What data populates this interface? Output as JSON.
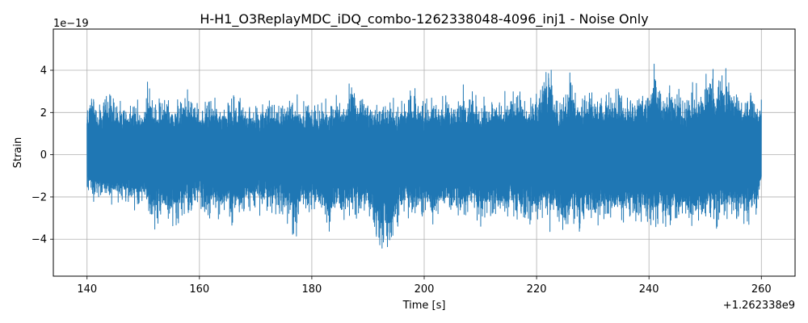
{
  "chart_data": {
    "type": "line",
    "title": "H-H1_O3ReplayMDC_iDQ_combo-1262338048-4096_inj1 - Noise Only",
    "xlabel": "Time [s]",
    "ylabel": "Strain",
    "x_offset_label": "+1.262338e9",
    "y_scale_label": "1e−19",
    "xlim": [
      134,
      266
    ],
    "ylim": [
      -5.75,
      5.95
    ],
    "x_ticks": [
      140,
      160,
      180,
      200,
      220,
      240,
      260
    ],
    "x_tick_labels": [
      "140",
      "160",
      "180",
      "200",
      "220",
      "240",
      "260"
    ],
    "y_ticks": [
      -4,
      -2,
      0,
      2,
      4
    ],
    "y_tick_labels": [
      "−4",
      "−2",
      "0",
      "2",
      "4"
    ],
    "grid": true,
    "series": [
      {
        "color": "#1f77b4",
        "x_range": [
          140,
          260
        ],
        "envelope_upper": [
          [
            140,
            2.8
          ],
          [
            141,
            3.8
          ],
          [
            142,
            2.6
          ],
          [
            144,
            3.7
          ],
          [
            146,
            2.6
          ],
          [
            148,
            3.0
          ],
          [
            150,
            2.5
          ],
          [
            151,
            4.1
          ],
          [
            152,
            2.7
          ],
          [
            154,
            3.2
          ],
          [
            156,
            2.9
          ],
          [
            158,
            3.4
          ],
          [
            160,
            2.6
          ],
          [
            162,
            3.0
          ],
          [
            164,
            2.7
          ],
          [
            166,
            3.1
          ],
          [
            168,
            2.8
          ],
          [
            170,
            2.6
          ],
          [
            172,
            3.0
          ],
          [
            174,
            2.7
          ],
          [
            176,
            3.3
          ],
          [
            178,
            3.0
          ],
          [
            180,
            2.8
          ],
          [
            182,
            2.6
          ],
          [
            184,
            3.2
          ],
          [
            186,
            2.9
          ],
          [
            187,
            4.3
          ],
          [
            188,
            3.4
          ],
          [
            190,
            3.0
          ],
          [
            192,
            2.7
          ],
          [
            194,
            3.1
          ],
          [
            196,
            2.8
          ],
          [
            198,
            3.3
          ],
          [
            200,
            2.9
          ],
          [
            202,
            3.1
          ],
          [
            204,
            3.0
          ],
          [
            206,
            3.4
          ],
          [
            208,
            3.6
          ],
          [
            210,
            2.9
          ],
          [
            212,
            3.2
          ],
          [
            214,
            3.0
          ],
          [
            216,
            3.3
          ],
          [
            218,
            3.1
          ],
          [
            220,
            3.4
          ],
          [
            222,
            4.5
          ],
          [
            224,
            3.0
          ],
          [
            226,
            4.2
          ],
          [
            228,
            3.1
          ],
          [
            230,
            3.3
          ],
          [
            232,
            3.2
          ],
          [
            234,
            3.6
          ],
          [
            236,
            3.1
          ],
          [
            238,
            3.6
          ],
          [
            240,
            3.9
          ],
          [
            241,
            5.4
          ],
          [
            242,
            3.4
          ],
          [
            244,
            3.7
          ],
          [
            246,
            3.2
          ],
          [
            248,
            3.5
          ],
          [
            250,
            4.0
          ],
          [
            251,
            5.0
          ],
          [
            252,
            4.2
          ],
          [
            254,
            4.6
          ],
          [
            256,
            3.2
          ],
          [
            258,
            3.4
          ],
          [
            260,
            2.8
          ]
        ],
        "envelope_lower": [
          [
            140,
            -1.8
          ],
          [
            141,
            -2.5
          ],
          [
            142,
            -2.2
          ],
          [
            144,
            -2.6
          ],
          [
            146,
            -2.3
          ],
          [
            148,
            -3.2
          ],
          [
            150,
            -2.6
          ],
          [
            152,
            -4.1
          ],
          [
            154,
            -3.3
          ],
          [
            155,
            -4.0
          ],
          [
            156,
            -3.6
          ],
          [
            158,
            -3.3
          ],
          [
            160,
            -3.0
          ],
          [
            162,
            -3.4
          ],
          [
            164,
            -3.0
          ],
          [
            166,
            -3.6
          ],
          [
            168,
            -3.2
          ],
          [
            170,
            -3.0
          ],
          [
            172,
            -3.2
          ],
          [
            174,
            -3.0
          ],
          [
            176,
            -3.5
          ],
          [
            177,
            -4.8
          ],
          [
            178,
            -3.2
          ],
          [
            180,
            -3.0
          ],
          [
            182,
            -3.3
          ],
          [
            183,
            -5.0
          ],
          [
            184,
            -3.4
          ],
          [
            186,
            -3.3
          ],
          [
            188,
            -3.2
          ],
          [
            190,
            -3.5
          ],
          [
            192,
            -5.0
          ],
          [
            194,
            -5.2
          ],
          [
            196,
            -3.3
          ],
          [
            198,
            -3.5
          ],
          [
            200,
            -3.3
          ],
          [
            202,
            -3.6
          ],
          [
            204,
            -3.2
          ],
          [
            206,
            -3.5
          ],
          [
            208,
            -3.3
          ],
          [
            210,
            -3.6
          ],
          [
            212,
            -3.4
          ],
          [
            214,
            -3.6
          ],
          [
            216,
            -3.3
          ],
          [
            218,
            -3.6
          ],
          [
            220,
            -3.4
          ],
          [
            222,
            -3.8
          ],
          [
            224,
            -3.6
          ],
          [
            225,
            -5.1
          ],
          [
            226,
            -3.5
          ],
          [
            228,
            -3.8
          ],
          [
            230,
            -3.6
          ],
          [
            232,
            -3.8
          ],
          [
            234,
            -3.5
          ],
          [
            236,
            -3.8
          ],
          [
            238,
            -3.6
          ],
          [
            240,
            -4.3
          ],
          [
            242,
            -3.8
          ],
          [
            244,
            -3.6
          ],
          [
            246,
            -4.0
          ],
          [
            248,
            -3.7
          ],
          [
            250,
            -3.6
          ],
          [
            252,
            -3.8
          ],
          [
            254,
            -3.6
          ],
          [
            256,
            -3.8
          ],
          [
            258,
            -3.4
          ],
          [
            259,
            -4.0
          ],
          [
            260,
            -1.8
          ]
        ]
      }
    ]
  }
}
